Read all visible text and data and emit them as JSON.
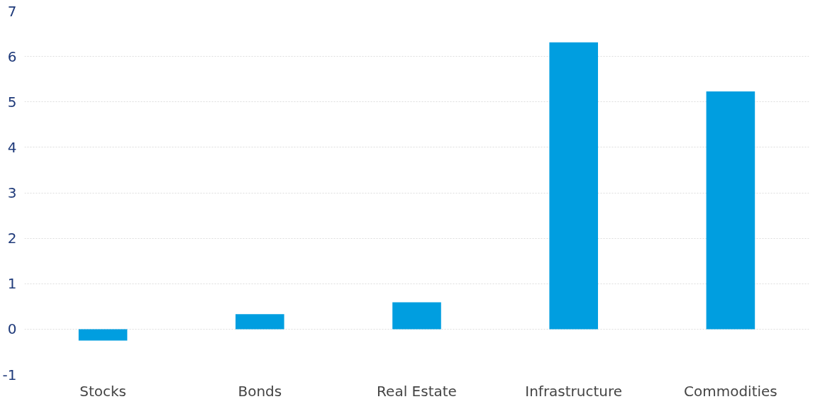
{
  "chart_data": {
    "type": "bar",
    "categories": [
      "Stocks",
      "Bonds",
      "Real Estate",
      "Infrastructure",
      "Commodities"
    ],
    "values": [
      -0.25,
      0.33,
      0.59,
      6.31,
      5.23
    ],
    "color": "#009ee0",
    "ylim": [
      -1,
      7
    ],
    "yticks": [
      {
        "value": -1,
        "label": "-1"
      },
      0,
      1,
      2,
      3,
      4,
      5,
      6,
      7
    ],
    "grid": "y"
  }
}
